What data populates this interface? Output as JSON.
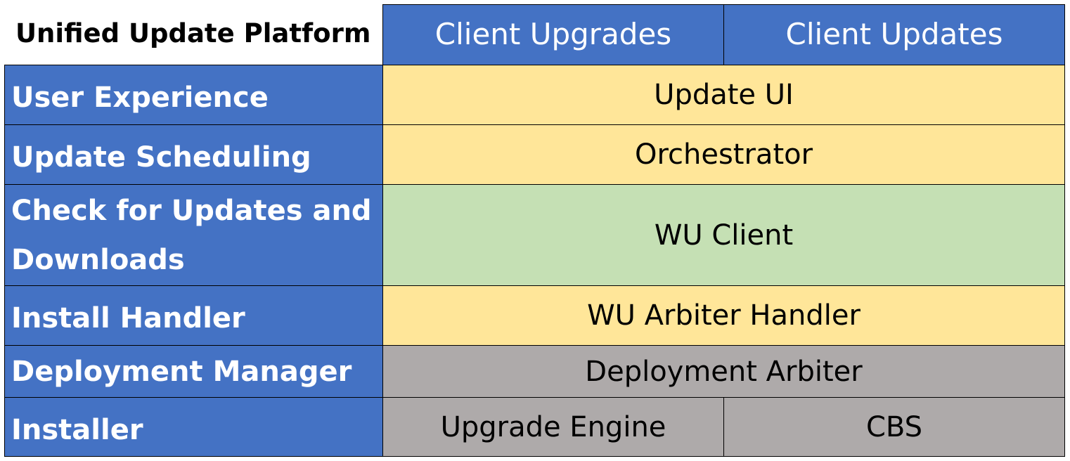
{
  "title": "Unified Update Platform",
  "columns": [
    "Client Upgrades",
    "Client Updates"
  ],
  "rows": [
    {
      "label": "User Experience",
      "component": "Update UI"
    },
    {
      "label": "Update Scheduling",
      "component": "Orchestrator"
    },
    {
      "label": "Check for Updates and Downloads",
      "component": "WU Client"
    },
    {
      "label": "Install Handler",
      "component": "WU Arbiter Handler"
    },
    {
      "label": "Deployment Manager",
      "component": "Deployment Arbiter"
    },
    {
      "label": "Installer",
      "components": [
        "Upgrade Engine",
        "CBS"
      ]
    }
  ],
  "colors": {
    "header": "#4472C4",
    "ux_layer": "#FFE699",
    "wu_client": "#C5E0B4",
    "install_layer": "#AEAAAA"
  }
}
